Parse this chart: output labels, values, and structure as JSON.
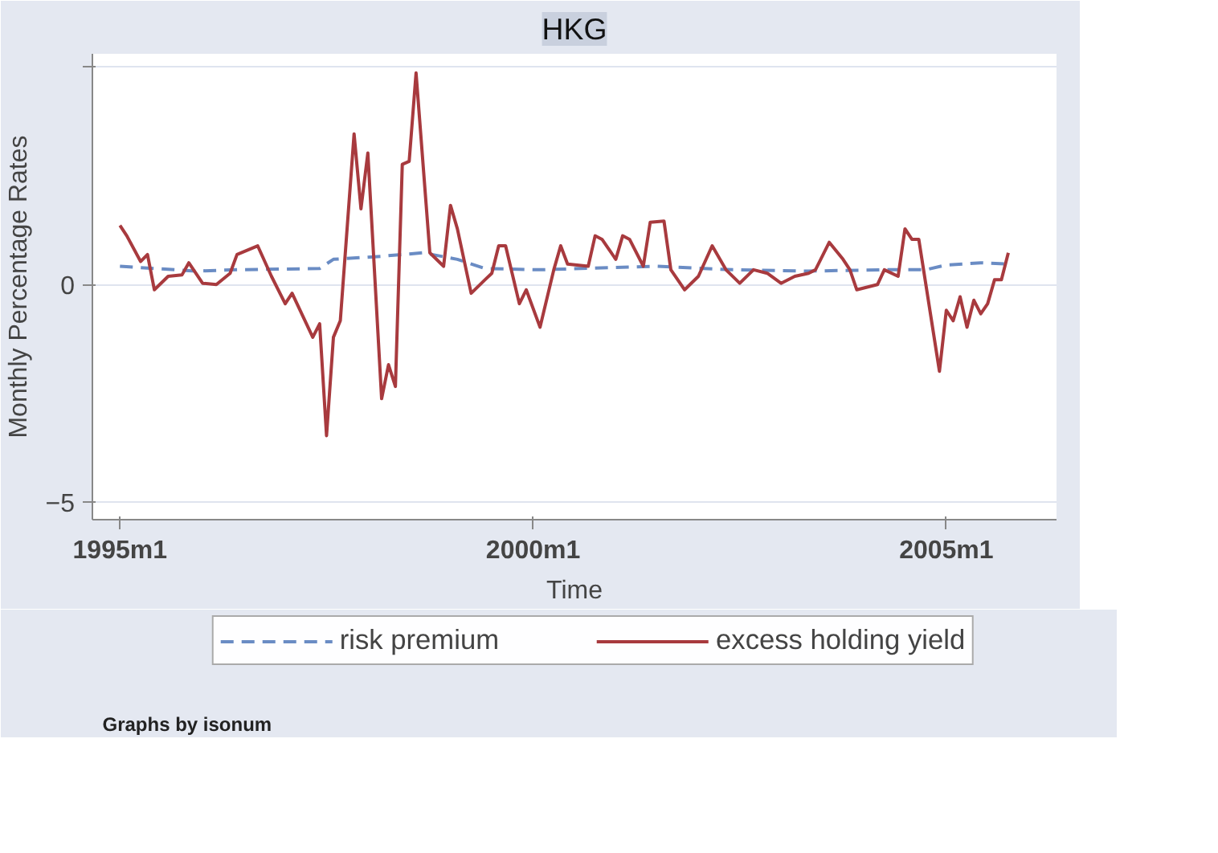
{
  "chart_data": {
    "type": "line",
    "title": "HKG",
    "xlabel": "Time",
    "ylabel": "Monthly Percentage Rates",
    "xlim": [
      "1994-09",
      "2006-05"
    ],
    "xticks": [
      {
        "value": "1995-01",
        "label": "1995m1"
      },
      {
        "value": "2000-01",
        "label": "2000m1"
      },
      {
        "value": "2005-01",
        "label": "2005m1"
      }
    ],
    "ylim": [
      -5.4,
      5.3
    ],
    "yticks": [
      -5,
      0,
      {
        "value": 5,
        "label": null
      }
    ],
    "grid": "y",
    "legend": "bottom",
    "marker": "none",
    "annotations": [
      "Graphs by isonum"
    ],
    "series": [
      {
        "name": "risk premium",
        "color": "#6a8cc4",
        "line_style": "dashed",
        "x": [
          "1995-01",
          "1995-06",
          "1995-12",
          "1996-06",
          "1997-06",
          "1997-08",
          "1998-03",
          "1998-09",
          "1999-02",
          "1999-06",
          "2000-02",
          "2001-07",
          "2002-06",
          "2003-05",
          "2004-04",
          "2004-10",
          "2005-01",
          "2005-06",
          "2005-10"
        ],
        "values": [
          0.42,
          0.37,
          0.31,
          0.34,
          0.37,
          0.58,
          0.65,
          0.73,
          0.58,
          0.37,
          0.34,
          0.42,
          0.34,
          0.31,
          0.34,
          0.34,
          0.45,
          0.5,
          0.47
        ]
      },
      {
        "name": "excess holding yield",
        "color": "#a83a3e",
        "line_style": "solid",
        "x": [
          "1995-01",
          "1995-02",
          "1995-04",
          "1995-05",
          "1995-06",
          "1995-08",
          "1995-10",
          "1995-11",
          "1996-01",
          "1996-03",
          "1996-05",
          "1996-06",
          "1996-09",
          "1996-11",
          "1997-01",
          "1997-02",
          "1997-05",
          "1997-06",
          "1997-07",
          "1997-08",
          "1997-09",
          "1997-11",
          "1997-12",
          "1998-01",
          "1998-03",
          "1998-04",
          "1998-05",
          "1998-06",
          "1998-07",
          "1998-08",
          "1998-10",
          "1998-12",
          "1999-01",
          "1999-02",
          "1999-04",
          "1999-06",
          "1999-07",
          "1999-08",
          "1999-09",
          "1999-11",
          "1999-12",
          "2000-02",
          "2000-04",
          "2000-05",
          "2000-06",
          "2000-09",
          "2000-10",
          "2000-11",
          "2001-01",
          "2001-02",
          "2001-03",
          "2001-05",
          "2001-06",
          "2001-08",
          "2001-09",
          "2001-11",
          "2002-01",
          "2002-03",
          "2002-05",
          "2002-07",
          "2002-09",
          "2002-11",
          "2003-01",
          "2003-03",
          "2003-05",
          "2003-06",
          "2003-08",
          "2003-10",
          "2003-11",
          "2003-12",
          "2004-03",
          "2004-04",
          "2004-06",
          "2004-07",
          "2004-08",
          "2004-09",
          "2004-12",
          "2005-01",
          "2005-02",
          "2005-03",
          "2005-04",
          "2005-05",
          "2005-06",
          "2005-07",
          "2005-08",
          "2005-09",
          "2005-10"
        ],
        "values": [
          1.36,
          1.12,
          0.53,
          0.69,
          -0.12,
          0.19,
          0.22,
          0.5,
          0.03,
          0,
          0.26,
          0.69,
          0.89,
          0.19,
          -0.44,
          -0.2,
          -1.21,
          -0.9,
          -3.47,
          -1.21,
          -0.83,
          3.46,
          1.74,
          3.02,
          -2.62,
          -1.84,
          -2.34,
          2.76,
          2.83,
          4.86,
          0.73,
          0.42,
          1.82,
          1.28,
          -0.2,
          0.11,
          0.26,
          0.89,
          0.89,
          -0.44,
          -0.12,
          -0.98,
          0.34,
          0.89,
          0.47,
          0.42,
          1.12,
          1.04,
          0.58,
          1.12,
          1.04,
          0.42,
          1.43,
          1.46,
          0.34,
          -0.12,
          0.19,
          0.89,
          0.34,
          0.03,
          0.34,
          0.26,
          0.03,
          0.19,
          0.26,
          0.34,
          0.97,
          0.58,
          0.34,
          -0.12,
          0,
          0.34,
          0.19,
          1.28,
          1.04,
          1.04,
          -1.99,
          -0.59,
          -0.83,
          -0.28,
          -0.98,
          -0.36,
          -0.67,
          -0.44,
          0.11,
          0.11,
          0.73
        ]
      }
    ]
  }
}
